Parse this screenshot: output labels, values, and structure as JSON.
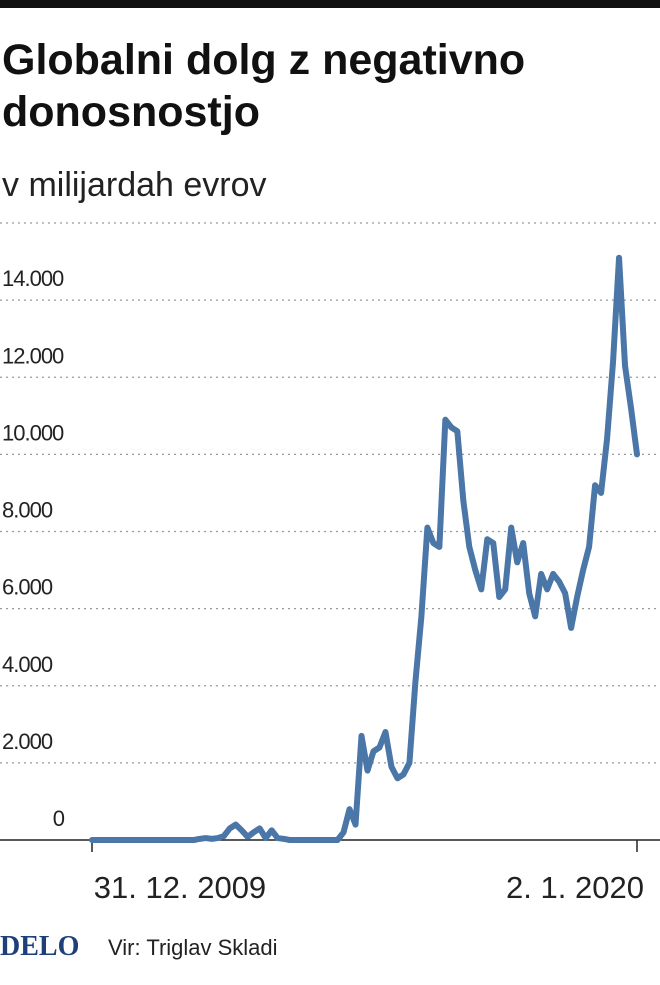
{
  "chart_data": {
    "type": "line",
    "title": "Globalni dolg z negativno donosnostjo",
    "subtitle": "v milijardah evrov",
    "source": "Vir: Triglav Skladi",
    "logo": "DELO",
    "categories": [
      "31. 12. 2009",
      null,
      null,
      null,
      null,
      null,
      null,
      null,
      null,
      null,
      null,
      null,
      null,
      null,
      null,
      null,
      null,
      null,
      null,
      null,
      null,
      null,
      null,
      null,
      null,
      null,
      null,
      null,
      null,
      null,
      null,
      null,
      null,
      null,
      null,
      null,
      null,
      null,
      null,
      null,
      null,
      null,
      null,
      null,
      null,
      null,
      null,
      null,
      null,
      null,
      null,
      null,
      null,
      null,
      null,
      null,
      null,
      null,
      null,
      null,
      null,
      null,
      null,
      null,
      null,
      null,
      null,
      null,
      null,
      null,
      null,
      null,
      null,
      null,
      null,
      null,
      null,
      null,
      null,
      null,
      null,
      null,
      null,
      null,
      null,
      null,
      null,
      null,
      null,
      null,
      null,
      "2. 1. 2020"
    ],
    "series": [
      {
        "color": "#4a76a8",
        "values": [
          0,
          0,
          0,
          0,
          0,
          0,
          0,
          0,
          0,
          0,
          0,
          0,
          0,
          0,
          0,
          0,
          0,
          0,
          30,
          50,
          30,
          50,
          100,
          300,
          400,
          250,
          80,
          200,
          300,
          50,
          250,
          50,
          30,
          0,
          0,
          0,
          0,
          0,
          0,
          0,
          0,
          0,
          200,
          800,
          400,
          2700,
          1800,
          2300,
          2400,
          2800,
          1900,
          1600,
          1700,
          2000,
          4100,
          5800,
          8100,
          7700,
          7600,
          10900,
          10700,
          10600,
          8800,
          7600,
          7000,
          6500,
          7800,
          7700,
          6300,
          6500,
          8100,
          7200,
          7700,
          6400,
          5800,
          6900,
          6500,
          6900,
          6700,
          6400,
          5500,
          6300,
          7000,
          7600,
          9200,
          9000,
          10400,
          12400,
          15100,
          12300,
          11200,
          10000
        ]
      }
    ],
    "ylim": [
      0,
      16000
    ],
    "yticks": [
      0,
      {
        "value": 2000,
        "label": "2.000"
      },
      {
        "value": 4000,
        "label": "4.000"
      },
      {
        "value": 6000,
        "label": "6.000"
      },
      {
        "value": 8000,
        "label": "8.000"
      },
      {
        "value": 10000,
        "label": "10.000"
      },
      {
        "value": 12000,
        "label": "12.000"
      },
      {
        "value": 14000,
        "label": "14.000"
      }
    ],
    "grid": true
  }
}
